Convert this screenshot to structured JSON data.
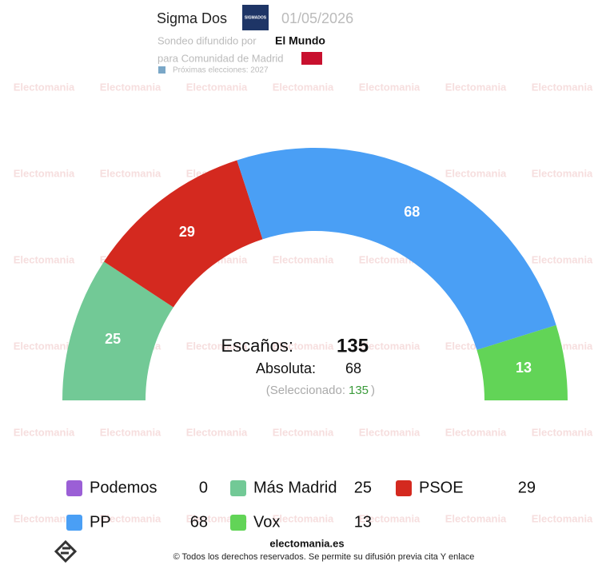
{
  "header": {
    "pollster": "Sigma Dos",
    "pollster_logo": "SIGMADOS",
    "date": "01/05/2026",
    "published_by_label": "Sondeo difundido por",
    "publisher": "El Mundo",
    "region_label": "para Comunidad de Madrid",
    "next_election": "Próximas elecciones: 2027"
  },
  "watermark": "Electomania",
  "chart_data": {
    "type": "hemicycle",
    "categories": [
      "Podemos",
      "Más Madrid",
      "PSOE",
      "PP",
      "Vox"
    ],
    "values": [
      0,
      25,
      29,
      68,
      13
    ],
    "colors": [
      "#9b5fd6",
      "#72c996",
      "#d4291f",
      "#4a9ff5",
      "#62d457"
    ],
    "seats_label": "Escaños:",
    "seats_total": 135,
    "majority_label": "Absoluta:",
    "majority": 68,
    "selected_label": "(Seleccionado:",
    "selected": 135,
    "selected_close": ")"
  },
  "footer": {
    "site": "electomania.es",
    "copyright": "© Todos los derechos reservados. Se permite su difusión previa cita Y enlace"
  }
}
